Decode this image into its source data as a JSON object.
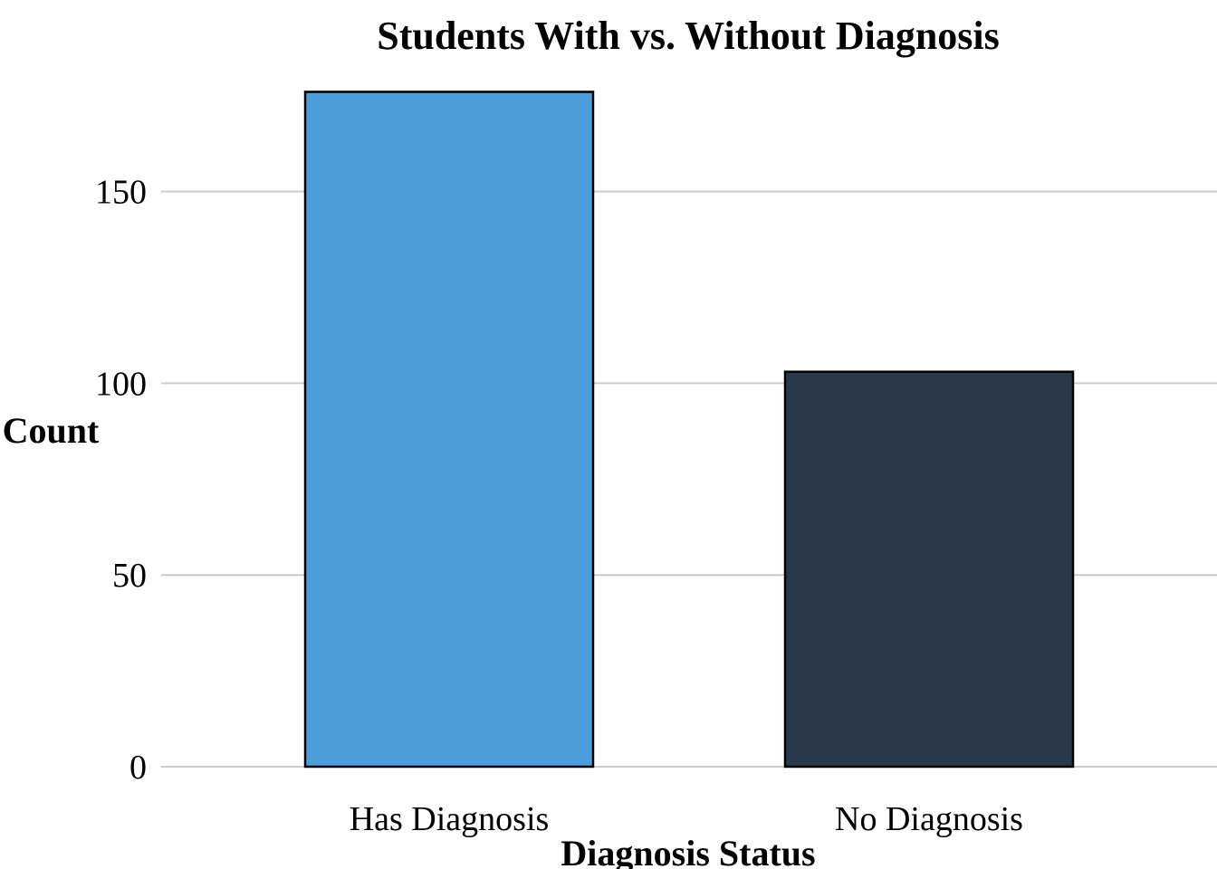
{
  "chart_data": {
    "type": "bar",
    "title": "Students With vs. Without Diagnosis",
    "xlabel": "Diagnosis Status",
    "ylabel": "Count",
    "categories": [
      "Has Diagnosis",
      "No Diagnosis"
    ],
    "values": [
      176,
      103
    ],
    "colors": [
      "#4d9ddb",
      "#29384a"
    ],
    "ylim": [
      0,
      180
    ],
    "yticks": [
      0,
      50,
      100,
      150
    ],
    "grid": "horizontal",
    "legend": "none"
  }
}
